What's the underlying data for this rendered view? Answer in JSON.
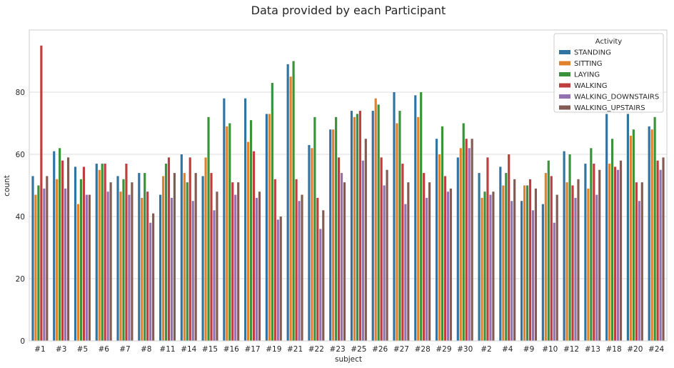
{
  "chart_data": {
    "type": "bar",
    "title": "Data provided by each Participant",
    "xlabel": "subject",
    "ylabel": "count",
    "ylim": [
      0,
      100
    ],
    "yticks": [
      0,
      20,
      40,
      60,
      80
    ],
    "grid": true,
    "legend": {
      "title": "Activity",
      "position": "top-right"
    },
    "categories": [
      "#1",
      "#3",
      "#5",
      "#6",
      "#7",
      "#8",
      "#11",
      "#14",
      "#15",
      "#16",
      "#17",
      "#19",
      "#21",
      "#22",
      "#23",
      "#25",
      "#26",
      "#27",
      "#28",
      "#29",
      "#30",
      "#2",
      "#4",
      "#9",
      "#10",
      "#12",
      "#13",
      "#18",
      "#20",
      "#24"
    ],
    "series": [
      {
        "name": "STANDING",
        "color": "#3274a1",
        "values": [
          53,
          61,
          56,
          57,
          53,
          54,
          47,
          60,
          53,
          78,
          78,
          73,
          89,
          63,
          68,
          74,
          74,
          80,
          79,
          65,
          59,
          54,
          56,
          45,
          44,
          61,
          57,
          73,
          73,
          69
        ]
      },
      {
        "name": "SITTING",
        "color": "#e1812c",
        "values": [
          47,
          52,
          44,
          55,
          48,
          46,
          53,
          54,
          59,
          69,
          64,
          73,
          85,
          62,
          68,
          72,
          78,
          70,
          72,
          60,
          62,
          46,
          50,
          50,
          54,
          51,
          49,
          57,
          66,
          68
        ]
      },
      {
        "name": "LAYING",
        "color": "#3a923a",
        "values": [
          50,
          62,
          52,
          57,
          52,
          54,
          57,
          51,
          72,
          70,
          71,
          83,
          90,
          72,
          72,
          73,
          76,
          74,
          80,
          69,
          70,
          48,
          54,
          50,
          58,
          60,
          62,
          65,
          68,
          72
        ]
      },
      {
        "name": "WALKING",
        "color": "#c03d3e",
        "values": [
          95,
          58,
          56,
          57,
          57,
          48,
          59,
          59,
          54,
          51,
          61,
          52,
          52,
          46,
          59,
          74,
          59,
          57,
          54,
          53,
          65,
          59,
          60,
          52,
          53,
          50,
          57,
          56,
          51,
          58
        ]
      },
      {
        "name": "WALKING_DOWNSTAIRS",
        "color": "#9372b2",
        "values": [
          49,
          49,
          47,
          48,
          47,
          38,
          46,
          45,
          42,
          47,
          46,
          39,
          45,
          36,
          54,
          58,
          50,
          44,
          46,
          48,
          62,
          47,
          45,
          42,
          38,
          46,
          47,
          55,
          45,
          55
        ]
      },
      {
        "name": "WALKING_UPSTAIRS",
        "color": "#845b53",
        "values": [
          53,
          59,
          47,
          51,
          51,
          41,
          54,
          54,
          48,
          51,
          48,
          40,
          47,
          42,
          51,
          65,
          55,
          51,
          51,
          49,
          65,
          48,
          52,
          49,
          47,
          52,
          55,
          58,
          51,
          59
        ]
      }
    ]
  }
}
